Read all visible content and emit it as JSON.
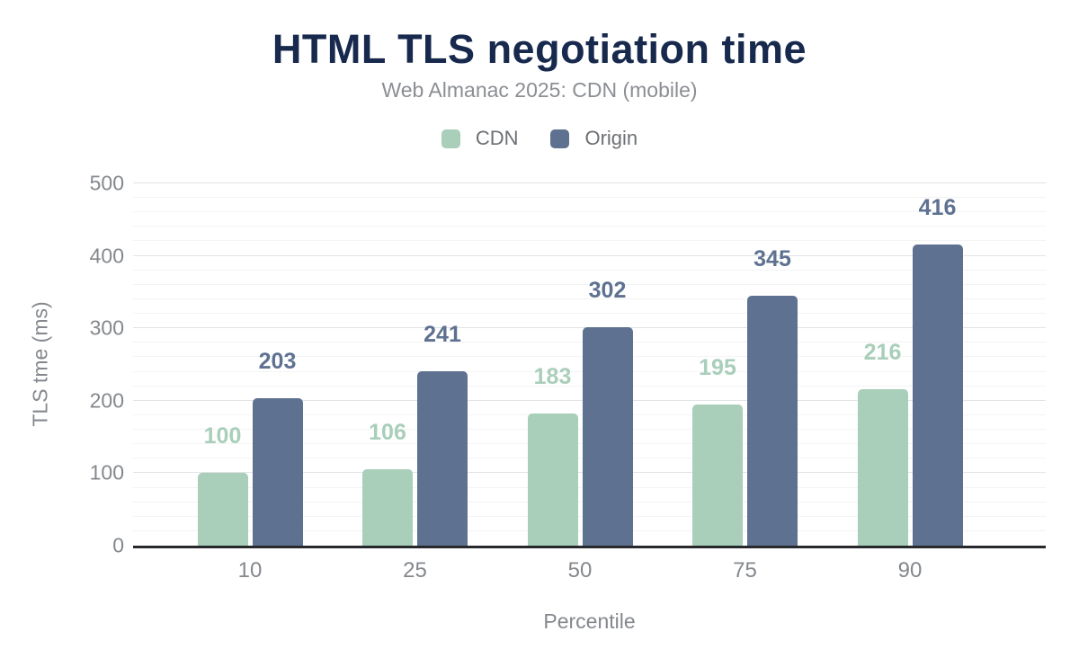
{
  "chart_data": {
    "type": "bar",
    "title": "HTML TLS negotiation time",
    "subtitle": "Web Almanac 2025: CDN (mobile)",
    "xlabel": "Percentile",
    "ylabel": "TLS tme (ms)",
    "categories": [
      "10",
      "25",
      "50",
      "75",
      "90"
    ],
    "series": [
      {
        "name": "CDN",
        "color": "#a9ceba",
        "values": [
          100,
          106,
          183,
          195,
          216
        ]
      },
      {
        "name": "Origin",
        "color": "#5e7191",
        "values": [
          203,
          241,
          302,
          345,
          416
        ]
      }
    ],
    "ylim": [
      0,
      500
    ],
    "yticks": [
      0,
      100,
      200,
      300,
      400,
      500
    ],
    "minor_grid_step": 20,
    "major_grid_step": 100,
    "grid": "horizontal",
    "legend_position": "top",
    "value_labels": true
  },
  "style": {
    "colors": {
      "background": "#ffffff",
      "title": "#17294d",
      "subtitle": "#8b8e93",
      "axis_text": "#84888d",
      "legend_text": "#6d7074",
      "axis_line": "#27292c",
      "grid_major": "#e2e3e5",
      "grid_minor": "#f2f3f4"
    }
  }
}
